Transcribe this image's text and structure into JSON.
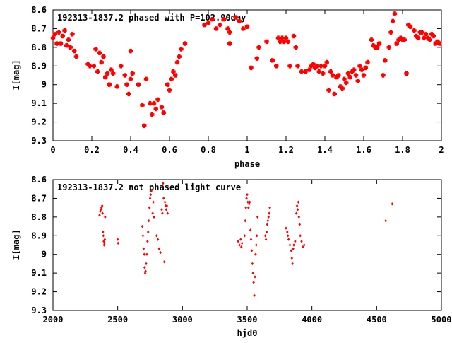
{
  "chart_data": [
    {
      "type": "scatter",
      "title": "192313-1837.2 phased with P=102.90day",
      "xlabel": "phase",
      "ylabel": "I[mag]",
      "xlim": [
        0,
        2
      ],
      "ylim": [
        9.3,
        8.6
      ],
      "y_inverted": true,
      "grid": false,
      "marker_color": "#ff0000",
      "x_ticks": [
        "0",
        "0.2",
        "0.4",
        "0.6",
        "0.8",
        "1",
        "1.2",
        "1.4",
        "1.6",
        "1.8",
        "2"
      ],
      "y_ticks": [
        "8.6",
        "8.7",
        "8.8",
        "8.9",
        "9",
        "9.1",
        "9.2",
        "9.3"
      ],
      "points": [
        [
          0.0,
          8.75
        ],
        [
          0.01,
          8.73
        ],
        [
          0.02,
          8.78
        ],
        [
          0.03,
          8.72
        ],
        [
          0.04,
          8.78
        ],
        [
          0.05,
          8.74
        ],
        [
          0.06,
          8.71
        ],
        [
          0.07,
          8.79
        ],
        [
          0.08,
          8.76
        ],
        [
          0.09,
          8.8
        ],
        [
          0.1,
          8.73
        ],
        [
          0.11,
          8.82
        ],
        [
          0.12,
          8.85
        ],
        [
          0.18,
          8.89
        ],
        [
          0.19,
          8.9
        ],
        [
          0.21,
          8.9
        ],
        [
          0.22,
          8.81
        ],
        [
          0.23,
          8.93
        ],
        [
          0.24,
          8.83
        ],
        [
          0.25,
          8.88
        ],
        [
          0.26,
          8.85
        ],
        [
          0.27,
          8.96
        ],
        [
          0.28,
          8.94
        ],
        [
          0.29,
          9.0
        ],
        [
          0.3,
          8.92
        ],
        [
          0.31,
          8.94
        ],
        [
          0.33,
          9.01
        ],
        [
          0.35,
          8.9
        ],
        [
          0.37,
          8.95
        ],
        [
          0.38,
          9.0
        ],
        [
          0.39,
          9.05
        ],
        [
          0.4,
          8.97
        ],
        [
          0.41,
          8.94
        ],
        [
          0.4,
          8.82
        ],
        [
          0.44,
          9.0
        ],
        [
          0.46,
          9.11
        ],
        [
          0.48,
          8.97
        ],
        [
          0.47,
          9.22
        ],
        [
          0.5,
          9.1
        ],
        [
          0.51,
          9.16
        ],
        [
          0.52,
          9.1
        ],
        [
          0.53,
          9.13
        ],
        [
          0.54,
          9.08
        ],
        [
          0.56,
          9.12
        ],
        [
          0.57,
          9.15
        ],
        [
          0.59,
          9.0
        ],
        [
          0.6,
          9.03
        ],
        [
          0.61,
          8.97
        ],
        [
          0.62,
          8.93
        ],
        [
          0.63,
          8.95
        ],
        [
          0.64,
          8.88
        ],
        [
          0.65,
          8.85
        ],
        [
          0.66,
          8.81
        ],
        [
          0.68,
          8.78
        ],
        [
          0.78,
          8.68
        ],
        [
          0.8,
          8.67
        ],
        [
          0.82,
          8.65
        ],
        [
          0.84,
          8.7
        ],
        [
          0.86,
          8.68
        ],
        [
          0.88,
          8.65
        ],
        [
          0.9,
          8.7
        ],
        [
          0.91,
          8.72
        ],
        [
          0.91,
          8.78
        ],
        [
          0.94,
          8.64
        ],
        [
          0.96,
          8.66
        ],
        [
          0.98,
          8.7
        ],
        [
          1.0,
          8.69
        ],
        [
          1.02,
          8.91
        ],
        [
          1.05,
          8.86
        ],
        [
          1.06,
          8.8
        ],
        [
          1.1,
          8.77
        ],
        [
          1.13,
          8.87
        ],
        [
          1.15,
          8.9
        ],
        [
          1.16,
          8.75
        ],
        [
          1.17,
          8.77
        ],
        [
          1.18,
          8.75
        ],
        [
          1.19,
          8.77
        ],
        [
          1.2,
          8.75
        ],
        [
          1.21,
          8.77
        ],
        [
          1.22,
          8.9
        ],
        [
          1.24,
          8.74
        ],
        [
          1.25,
          8.8
        ],
        [
          1.26,
          8.9
        ],
        [
          1.28,
          8.93
        ],
        [
          1.3,
          8.93
        ],
        [
          1.32,
          8.92
        ],
        [
          1.33,
          8.9
        ],
        [
          1.34,
          8.89
        ],
        [
          1.35,
          8.91
        ],
        [
          1.36,
          8.9
        ],
        [
          1.37,
          8.93
        ],
        [
          1.38,
          8.9
        ],
        [
          1.39,
          8.94
        ],
        [
          1.4,
          8.9
        ],
        [
          1.41,
          8.88
        ],
        [
          1.42,
          9.03
        ],
        [
          1.43,
          8.93
        ],
        [
          1.44,
          8.95
        ],
        [
          1.45,
          9.05
        ],
        [
          1.46,
          8.96
        ],
        [
          1.47,
          8.95
        ],
        [
          1.48,
          9.01
        ],
        [
          1.49,
          9.02
        ],
        [
          1.5,
          8.97
        ],
        [
          1.51,
          8.99
        ],
        [
          1.52,
          8.94
        ],
        [
          1.53,
          8.96
        ],
        [
          1.54,
          8.93
        ],
        [
          1.55,
          8.92
        ],
        [
          1.56,
          8.95
        ],
        [
          1.57,
          8.98
        ],
        [
          1.58,
          8.9
        ],
        [
          1.59,
          8.92
        ],
        [
          1.6,
          8.95
        ],
        [
          1.61,
          8.91
        ],
        [
          1.62,
          8.88
        ],
        [
          1.64,
          8.76
        ],
        [
          1.65,
          8.79
        ],
        [
          1.66,
          8.8
        ],
        [
          1.67,
          8.8
        ],
        [
          1.68,
          8.78
        ],
        [
          1.7,
          8.95
        ],
        [
          1.71,
          8.87
        ],
        [
          1.73,
          8.8
        ],
        [
          1.74,
          8.72
        ],
        [
          1.75,
          8.66
        ],
        [
          1.76,
          8.62
        ],
        [
          1.77,
          8.78
        ],
        [
          1.78,
          8.76
        ],
        [
          1.79,
          8.75
        ],
        [
          1.8,
          8.76
        ],
        [
          1.81,
          8.76
        ],
        [
          1.82,
          8.94
        ],
        [
          1.83,
          8.68
        ],
        [
          1.84,
          8.69
        ],
        [
          1.86,
          8.71
        ],
        [
          1.87,
          8.74
        ],
        [
          1.88,
          8.75
        ],
        [
          1.89,
          8.72
        ],
        [
          1.9,
          8.72
        ],
        [
          1.91,
          8.75
        ],
        [
          1.92,
          8.73
        ],
        [
          1.93,
          8.75
        ],
        [
          1.94,
          8.76
        ],
        [
          1.95,
          8.73
        ],
        [
          1.96,
          8.74
        ],
        [
          1.97,
          8.78
        ],
        [
          1.98,
          8.77
        ],
        [
          1.99,
          8.78
        ]
      ]
    },
    {
      "type": "scatter",
      "title": "192313-1837.2 not phased light curve",
      "xlabel": "hjd0",
      "ylabel": "I[mag]",
      "xlim": [
        2000,
        5000
      ],
      "ylim": [
        9.3,
        8.6
      ],
      "y_inverted": true,
      "grid": false,
      "marker_color": "#ff0000",
      "x_ticks": [
        "2000",
        "2500",
        "3000",
        "3500",
        "4000",
        "4500",
        "5000"
      ],
      "y_ticks": [
        "8.6",
        "8.7",
        "8.8",
        "8.9",
        "9",
        "9.1",
        "9.2",
        "9.3"
      ],
      "points": [
        [
          2360,
          8.79
        ],
        [
          2365,
          8.77
        ],
        [
          2370,
          8.76
        ],
        [
          2375,
          8.75
        ],
        [
          2380,
          8.74
        ],
        [
          2383,
          8.78
        ],
        [
          2386,
          8.88
        ],
        [
          2389,
          8.9
        ],
        [
          2392,
          8.93
        ],
        [
          2395,
          8.95
        ],
        [
          2398,
          8.94
        ],
        [
          2400,
          8.92
        ],
        [
          2403,
          8.8
        ],
        [
          2500,
          8.92
        ],
        [
          2503,
          8.94
        ],
        [
          2690,
          8.85
        ],
        [
          2695,
          8.9
        ],
        [
          2700,
          8.97
        ],
        [
          2705,
          9.0
        ],
        [
          2708,
          9.07
        ],
        [
          2712,
          9.1
        ],
        [
          2715,
          9.09
        ],
        [
          2720,
          9.05
        ],
        [
          2725,
          9.0
        ],
        [
          2730,
          8.93
        ],
        [
          2735,
          8.88
        ],
        [
          2740,
          8.82
        ],
        [
          2745,
          8.75
        ],
        [
          2750,
          8.7
        ],
        [
          2755,
          8.68
        ],
        [
          2760,
          8.66
        ],
        [
          2770,
          8.78
        ],
        [
          2775,
          8.72
        ],
        [
          2780,
          8.8
        ],
        [
          2800,
          8.9
        ],
        [
          2810,
          8.92
        ],
        [
          2820,
          8.97
        ],
        [
          2830,
          8.99
        ],
        [
          2840,
          8.76
        ],
        [
          2845,
          8.78
        ],
        [
          2850,
          8.62
        ],
        [
          2855,
          8.7
        ],
        [
          2860,
          9.04
        ],
        [
          2865,
          8.72
        ],
        [
          2870,
          8.74
        ],
        [
          2875,
          8.76
        ],
        [
          2880,
          8.74
        ],
        [
          2885,
          8.78
        ],
        [
          3430,
          8.93
        ],
        [
          3440,
          8.95
        ],
        [
          3450,
          8.92
        ],
        [
          3455,
          8.96
        ],
        [
          3460,
          8.94
        ],
        [
          3480,
          8.9
        ],
        [
          3485,
          8.82
        ],
        [
          3490,
          8.75
        ],
        [
          3495,
          8.7
        ],
        [
          3500,
          8.68
        ],
        [
          3505,
          8.72
        ],
        [
          3510,
          8.75
        ],
        [
          3515,
          8.73
        ],
        [
          3520,
          8.72
        ],
        [
          3525,
          8.87
        ],
        [
          3530,
          8.92
        ],
        [
          3535,
          8.98
        ],
        [
          3540,
          9.05
        ],
        [
          3545,
          9.1
        ],
        [
          3550,
          9.15
        ],
        [
          3555,
          9.22
        ],
        [
          3560,
          9.12
        ],
        [
          3565,
          9.0
        ],
        [
          3570,
          8.95
        ],
        [
          3575,
          8.9
        ],
        [
          3580,
          8.8
        ],
        [
          3640,
          8.9
        ],
        [
          3645,
          8.92
        ],
        [
          3650,
          8.88
        ],
        [
          3655,
          8.84
        ],
        [
          3660,
          8.82
        ],
        [
          3665,
          8.8
        ],
        [
          3670,
          8.78
        ],
        [
          3675,
          8.75
        ],
        [
          3800,
          8.86
        ],
        [
          3810,
          8.88
        ],
        [
          3815,
          8.9
        ],
        [
          3820,
          8.92
        ],
        [
          3830,
          8.95
        ],
        [
          3840,
          8.98
        ],
        [
          3845,
          9.02
        ],
        [
          3850,
          9.05
        ],
        [
          3855,
          8.97
        ],
        [
          3860,
          8.95
        ],
        [
          3870,
          8.93
        ],
        [
          3880,
          8.78
        ],
        [
          3885,
          8.74
        ],
        [
          3890,
          8.76
        ],
        [
          3895,
          8.72
        ],
        [
          3900,
          8.8
        ],
        [
          3905,
          8.84
        ],
        [
          3910,
          8.9
        ],
        [
          3920,
          8.93
        ],
        [
          3930,
          8.96
        ],
        [
          3940,
          8.95
        ],
        [
          4570,
          8.82
        ],
        [
          4620,
          8.73
        ]
      ]
    }
  ]
}
